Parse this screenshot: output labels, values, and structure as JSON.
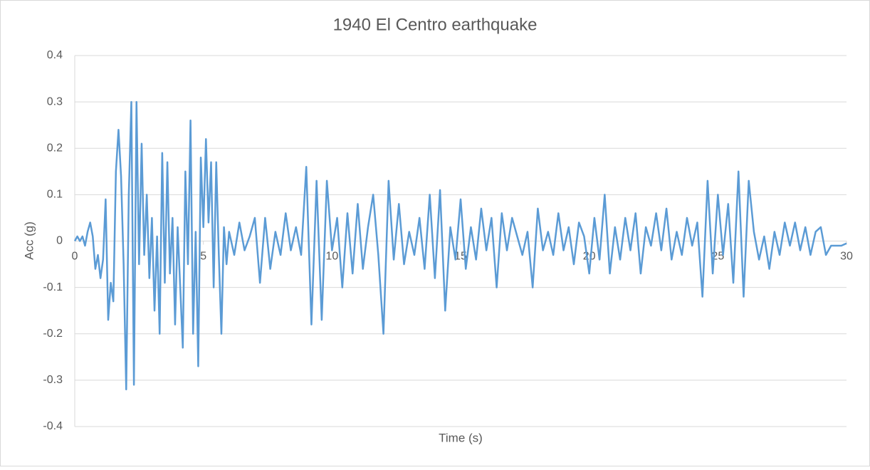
{
  "chart_data": {
    "type": "line",
    "title": "1940 El Centro earthquake",
    "x_label": "Time (s)",
    "y_label": "Acc (g)",
    "color": "#5b9bd5",
    "grid": true,
    "xlim": [
      0,
      30
    ],
    "xticks": [
      0,
      5,
      10,
      15,
      20,
      25,
      30
    ],
    "ylim": [
      -0.4,
      0.4
    ],
    "yticks": [
      -0.4,
      -0.3,
      -0.2,
      -0.1,
      0,
      0.1,
      0.2,
      0.3,
      0.4
    ],
    "x": [
      0,
      0.1,
      0.2,
      0.3,
      0.4,
      0.5,
      0.6,
      0.7,
      0.8,
      0.9,
      1.0,
      1.1,
      1.2,
      1.3,
      1.4,
      1.5,
      1.6,
      1.7,
      1.8,
      1.9,
      2.0,
      2.1,
      2.2,
      2.3,
      2.4,
      2.5,
      2.6,
      2.7,
      2.8,
      2.9,
      3.0,
      3.1,
      3.2,
      3.3,
      3.4,
      3.5,
      3.6,
      3.7,
      3.8,
      3.9,
      4.0,
      4.1,
      4.2,
      4.3,
      4.4,
      4.5,
      4.6,
      4.7,
      4.8,
      4.9,
      5.0,
      5.1,
      5.2,
      5.3,
      5.4,
      5.5,
      5.6,
      5.7,
      5.8,
      5.9,
      6.0,
      6.2,
      6.4,
      6.6,
      6.8,
      7.0,
      7.2,
      7.4,
      7.6,
      7.8,
      8.0,
      8.2,
      8.4,
      8.6,
      8.8,
      9.0,
      9.2,
      9.4,
      9.6,
      9.8,
      10.0,
      10.2,
      10.4,
      10.6,
      10.8,
      11.0,
      11.2,
      11.4,
      11.6,
      11.8,
      12.0,
      12.2,
      12.4,
      12.6,
      12.8,
      13.0,
      13.2,
      13.4,
      13.6,
      13.8,
      14.0,
      14.2,
      14.4,
      14.6,
      14.8,
      15.0,
      15.2,
      15.4,
      15.6,
      15.8,
      16.0,
      16.2,
      16.4,
      16.6,
      16.8,
      17.0,
      17.2,
      17.4,
      17.6,
      17.8,
      18.0,
      18.2,
      18.4,
      18.6,
      18.8,
      19.0,
      19.2,
      19.4,
      19.6,
      19.8,
      20.0,
      20.2,
      20.4,
      20.6,
      20.8,
      21.0,
      21.2,
      21.4,
      21.6,
      21.8,
      22.0,
      22.2,
      22.4,
      22.6,
      22.8,
      23.0,
      23.2,
      23.4,
      23.6,
      23.8,
      24.0,
      24.2,
      24.4,
      24.6,
      24.8,
      25.0,
      25.2,
      25.4,
      25.6,
      25.8,
      26.0,
      26.2,
      26.4,
      26.6,
      26.8,
      27.0,
      27.2,
      27.4,
      27.6,
      27.8,
      28.0,
      28.2,
      28.4,
      28.6,
      28.8,
      29.0,
      29.2,
      29.4,
      29.6,
      29.8,
      30.0
    ],
    "values": [
      0,
      0.01,
      0,
      0.01,
      -0.01,
      0.02,
      0.04,
      0.01,
      -0.06,
      -0.03,
      -0.08,
      -0.04,
      0.09,
      -0.17,
      -0.09,
      -0.13,
      0.15,
      0.24,
      0.14,
      -0.05,
      -0.32,
      0.1,
      0.3,
      -0.31,
      0.3,
      -0.05,
      0.21,
      -0.03,
      0.1,
      -0.08,
      0.05,
      -0.15,
      0.01,
      -0.2,
      0.19,
      -0.09,
      0.17,
      -0.07,
      0.05,
      -0.18,
      0.03,
      -0.1,
      -0.23,
      0.15,
      -0.05,
      0.26,
      -0.2,
      0.02,
      -0.27,
      0.18,
      0.03,
      0.22,
      0.04,
      0.17,
      -0.1,
      0.17,
      -0.03,
      -0.2,
      0.03,
      -0.05,
      0.02,
      -0.03,
      0.04,
      -0.02,
      0.01,
      0.05,
      -0.09,
      0.05,
      -0.06,
      0.02,
      -0.03,
      0.06,
      -0.02,
      0.03,
      -0.03,
      0.16,
      -0.18,
      0.13,
      -0.17,
      0.13,
      -0.02,
      0.05,
      -0.1,
      0.06,
      -0.07,
      0.08,
      -0.06,
      0.03,
      0.1,
      -0.03,
      -0.2,
      0.13,
      -0.04,
      0.08,
      -0.05,
      0.02,
      -0.03,
      0.05,
      -0.06,
      0.1,
      -0.08,
      0.11,
      -0.15,
      0.03,
      -0.04,
      0.09,
      -0.06,
      0.03,
      -0.04,
      0.07,
      -0.02,
      0.05,
      -0.1,
      0.06,
      -0.02,
      0.05,
      0.01,
      -0.03,
      0.02,
      -0.1,
      0.07,
      -0.02,
      0.02,
      -0.03,
      0.06,
      -0.02,
      0.03,
      -0.05,
      0.04,
      0.01,
      -0.07,
      0.05,
      -0.04,
      0.1,
      -0.07,
      0.03,
      -0.04,
      0.05,
      -0.02,
      0.06,
      -0.07,
      0.03,
      -0.01,
      0.06,
      -0.02,
      0.07,
      -0.04,
      0.02,
      -0.03,
      0.05,
      -0.01,
      0.04,
      -0.12,
      0.13,
      -0.07,
      0.1,
      -0.03,
      0.08,
      -0.09,
      0.15,
      -0.12,
      0.13,
      0.02,
      -0.04,
      0.01,
      -0.06,
      0.02,
      -0.03,
      0.04,
      -0.01,
      0.04,
      -0.02,
      0.03,
      -0.03,
      0.02,
      0.03,
      -0.03,
      -0.01,
      -0.01,
      -0.01,
      -0.005
    ]
  }
}
